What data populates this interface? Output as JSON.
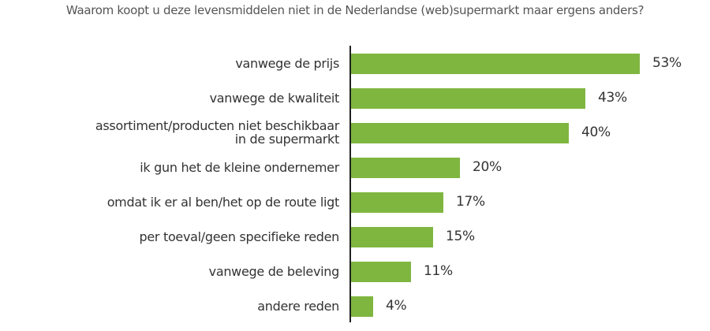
{
  "chart_data": {
    "type": "bar",
    "orientation": "horizontal",
    "title": "Waarom koopt u deze levensmiddelen niet in de Nederlandse (web)supermarkt maar ergens anders?",
    "categories": [
      "vanwege de prijs",
      "vanwege de kwaliteit",
      "assortiment/producten niet beschikbaar in de supermarkt",
      "ik gun het de kleine ondernemer",
      "omdat ik er al ben/het op de route ligt",
      "per toeval/geen specifieke reden",
      "vanwege de beleving",
      "andere reden"
    ],
    "values": [
      53,
      43,
      40,
      20,
      17,
      15,
      11,
      4
    ],
    "value_labels": [
      "53%",
      "43%",
      "40%",
      "20%",
      "17%",
      "15%",
      "11%",
      "4%"
    ],
    "unit": "%",
    "xlabel": "",
    "ylabel": "",
    "grid": false,
    "legend": "none",
    "bar_color": "#7fb640"
  },
  "rows": [
    {
      "label_lines": [
        "vanwege de prijs"
      ],
      "value": "53%"
    },
    {
      "label_lines": [
        "vanwege de kwaliteit"
      ],
      "value": "43%"
    },
    {
      "label_lines": [
        "assortiment/producten niet beschikbaar",
        "in de supermarkt"
      ],
      "value": "40%"
    },
    {
      "label_lines": [
        "ik gun het de kleine ondernemer"
      ],
      "value": "20%"
    },
    {
      "label_lines": [
        "omdat ik er al ben/het op de route ligt"
      ],
      "value": "17%"
    },
    {
      "label_lines": [
        "per toeval/geen specifieke reden"
      ],
      "value": "15%"
    },
    {
      "label_lines": [
        "vanwege de beleving"
      ],
      "value": "11%"
    },
    {
      "label_lines": [
        "andere reden"
      ],
      "value": "4%"
    }
  ]
}
